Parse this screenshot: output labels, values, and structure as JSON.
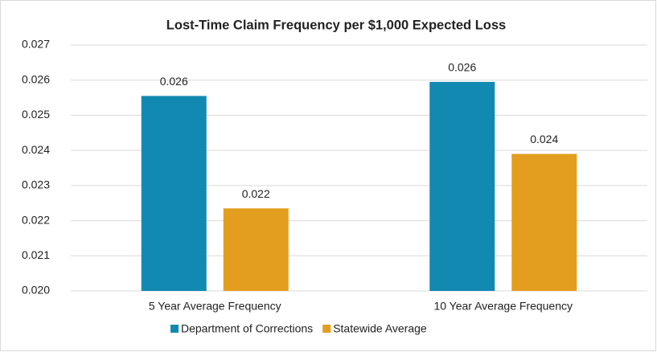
{
  "chart_data": {
    "type": "bar",
    "title": "Lost-Time Claim Frequency per $1,000 Expected Loss",
    "categories": [
      "5 Year Average Frequency",
      "10 Year Average Frequency"
    ],
    "series": [
      {
        "name": "Department of Corrections",
        "color": "#1289b0",
        "values": [
          0.02555,
          0.02595
        ],
        "value_labels": [
          "0.026",
          "0.026"
        ]
      },
      {
        "name": "Statewide Average",
        "color": "#e39e1f",
        "values": [
          0.02235,
          0.0239
        ],
        "value_labels": [
          "0.022",
          "0.024"
        ]
      }
    ],
    "ylim": [
      0.02,
      0.027
    ],
    "yticks": [
      {
        "value": 0.02,
        "label": "0.020"
      },
      0.021,
      0.022,
      0.023,
      0.024,
      0.025,
      0.026,
      0.027
    ],
    "grid": true,
    "legend": "bottom"
  }
}
